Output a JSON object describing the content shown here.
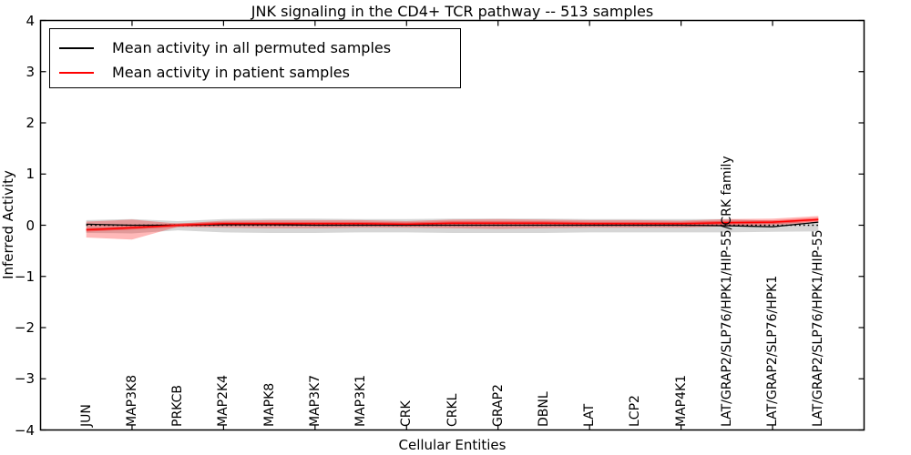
{
  "window": {
    "title": "JNK signaling in the CD4+ TCR pathway -- 513 samples"
  },
  "colors": {
    "permuted_line": "#000000",
    "patient_line": "#ff0000",
    "permuted_band": "rgba(0,0,0,0.16)",
    "patient_band": "rgba(255,0,0,0.28)",
    "patient_band_inner": "rgba(255,0,0,0.38)",
    "axis": "#000000",
    "background": "#ffffff"
  },
  "chart_data": {
    "type": "line",
    "title": "JNK signaling in the CD4+ TCR pathway -- 513 samples",
    "xlabel": "Cellular Entities",
    "ylabel": "Inferred Activity",
    "ylim": [
      -4,
      4
    ],
    "yticks": [
      4,
      3,
      2,
      1,
      0,
      -1,
      -2,
      -3,
      -4
    ],
    "x_units_range": [
      0,
      18
    ],
    "axis_tick_units": [
      2,
      4,
      6,
      8,
      10,
      12,
      14,
      16
    ],
    "grid": false,
    "legend_position": "upper left",
    "zero_reference_value": 0,
    "categories": [
      "JUN",
      "MAP3K8",
      "PRKCB",
      "MAP2K4",
      "MAPK8",
      "MAP3K7",
      "MAP3K1",
      "CRK",
      "CRKL",
      "GRAP2",
      "DBNL",
      "LAT",
      "LCP2",
      "MAP4K1",
      "LAT/GRAP2/SLP76/HPK1/HIP-55/CRK family",
      "LAT/GRAP2/SLP76/HPK1",
      "LAT/GRAP2/SLP76/HPK1/HIP-55"
    ],
    "series": [
      {
        "name": "Mean activity in all permuted samples",
        "color": "#000000",
        "values": [
          0.02,
          0.0,
          0.0,
          0.01,
          0.01,
          0.0,
          0.0,
          0.0,
          0.0,
          0.0,
          0.0,
          0.0,
          0.0,
          0.0,
          -0.01,
          -0.03,
          0.06
        ],
        "band_upper": [
          0.1,
          0.12,
          0.08,
          0.12,
          0.13,
          0.13,
          0.12,
          0.12,
          0.13,
          0.13,
          0.13,
          0.12,
          0.12,
          0.12,
          0.12,
          0.09,
          0.05
        ],
        "band_lower": [
          -0.15,
          -0.16,
          -0.1,
          -0.14,
          -0.15,
          -0.15,
          -0.14,
          -0.14,
          -0.15,
          -0.15,
          -0.15,
          -0.14,
          -0.14,
          -0.14,
          -0.14,
          -0.13,
          -0.12
        ]
      },
      {
        "name": "Mean activity in patient samples",
        "color": "#ff0000",
        "values": [
          -0.09,
          -0.05,
          0.0,
          0.03,
          0.03,
          0.03,
          0.03,
          0.02,
          0.04,
          0.04,
          0.04,
          0.03,
          0.03,
          0.03,
          0.05,
          0.06,
          0.11
        ],
        "band_upper": [
          0.07,
          0.11,
          0.03,
          0.09,
          0.1,
          0.1,
          0.1,
          0.08,
          0.11,
          0.12,
          0.11,
          0.1,
          0.1,
          0.09,
          0.12,
          0.13,
          0.18
        ],
        "band_lower": [
          -0.24,
          -0.28,
          -0.03,
          -0.05,
          -0.06,
          -0.06,
          -0.05,
          -0.05,
          -0.06,
          -0.07,
          -0.06,
          -0.05,
          -0.05,
          -0.05,
          -0.02,
          0.0,
          0.05
        ],
        "band_inner_upper": [
          -0.055,
          -0.015,
          0.035,
          0.065,
          0.065,
          0.065,
          0.065,
          0.055,
          0.075,
          0.075,
          0.075,
          0.065,
          0.065,
          0.065,
          0.085,
          0.095,
          0.145
        ],
        "band_inner_lower": [
          -0.125,
          -0.085,
          -0.035,
          -0.005,
          -0.005,
          -0.005,
          -0.005,
          -0.015,
          0.005,
          0.005,
          0.005,
          -0.005,
          -0.005,
          -0.005,
          0.015,
          0.025,
          0.075
        ]
      }
    ]
  }
}
